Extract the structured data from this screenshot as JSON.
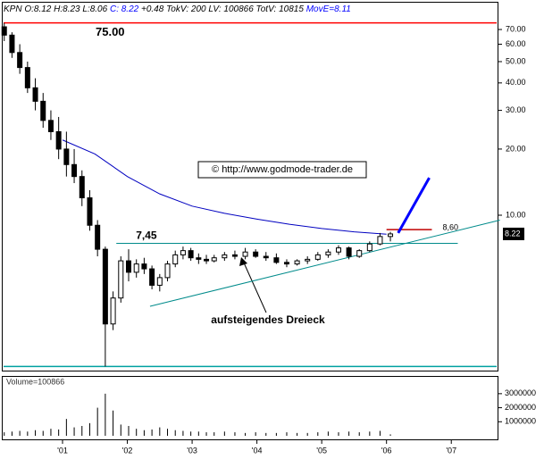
{
  "chart_data": {
    "type": "candlestick",
    "log_scale": true,
    "header": {
      "parts": [
        {
          "text": "KPN O:8.12 H:8.23 L:8.06 ",
          "color": "#000000"
        },
        {
          "text": "C: 8.22",
          "color": "#0000ff"
        },
        {
          "text": " +0.48 TokV: 200 LV: 100866 TotV: 10815 ",
          "color": "#000000"
        },
        {
          "text": "MovE=8.11",
          "color": "#0000ff"
        }
      ]
    },
    "x": [
      2000.1,
      2000.22,
      2000.34,
      2000.46,
      2000.58,
      2000.7,
      2000.82,
      2000.94,
      2001.06,
      2001.18,
      2001.3,
      2001.42,
      2001.54,
      2001.66,
      2001.78,
      2001.9,
      2002.02,
      2002.14,
      2002.26,
      2002.38,
      2002.5,
      2002.62,
      2002.74,
      2002.86,
      2002.98,
      2003.1,
      2003.22,
      2003.34,
      2003.5,
      2003.66,
      2003.82,
      2003.98,
      2004.14,
      2004.3,
      2004.46,
      2004.62,
      2004.78,
      2004.94,
      2005.1,
      2005.26,
      2005.42,
      2005.58,
      2005.74,
      2005.9,
      2006.06
    ],
    "open": [
      72,
      66,
      55,
      47,
      38,
      33,
      27,
      24,
      20,
      17,
      15,
      12,
      9,
      7,
      3.2,
      4.2,
      6.2,
      5.5,
      6.0,
      5.7,
      4.8,
      5.2,
      6.0,
      6.6,
      6.9,
      6.4,
      6.3,
      6.2,
      6.4,
      6.6,
      6.5,
      6.8,
      6.5,
      6.4,
      6.1,
      6.0,
      6.2,
      6.3,
      6.6,
      6.8,
      7.1,
      6.5,
      6.9,
      7.4,
      8.0
    ],
    "high": [
      75,
      68,
      60,
      50,
      42,
      36,
      30,
      28,
      24,
      20,
      16,
      13,
      9.5,
      7.2,
      4.5,
      6.5,
      7.0,
      6.3,
      6.4,
      5.9,
      5.4,
      6.2,
      6.9,
      7.2,
      7.1,
      6.7,
      6.6,
      6.6,
      6.8,
      6.9,
      7.1,
      7.0,
      6.8,
      6.7,
      6.3,
      6.3,
      6.5,
      6.8,
      7.0,
      7.3,
      7.2,
      7.0,
      7.6,
      8.3,
      8.4
    ],
    "low": [
      62,
      52,
      44,
      36,
      30,
      25,
      22,
      18,
      15,
      14,
      11,
      8.5,
      6.5,
      2.05,
      3.0,
      4.0,
      5.0,
      5.2,
      5.4,
      4.6,
      4.5,
      5.0,
      5.8,
      6.3,
      6.2,
      6.0,
      6.0,
      6.1,
      6.2,
      6.3,
      6.3,
      6.4,
      6.2,
      6.0,
      5.8,
      5.9,
      6.0,
      6.2,
      6.4,
      6.6,
      6.3,
      6.4,
      6.8,
      7.3,
      7.6
    ],
    "close": [
      66,
      55,
      47,
      38,
      33,
      27,
      24,
      20,
      17,
      15,
      12,
      9,
      7,
      3.2,
      4.2,
      6.2,
      5.5,
      6.0,
      5.7,
      4.8,
      5.2,
      6.0,
      6.6,
      6.9,
      6.4,
      6.3,
      6.2,
      6.4,
      6.6,
      6.5,
      6.8,
      6.5,
      6.4,
      6.1,
      6.0,
      6.2,
      6.3,
      6.6,
      6.8,
      7.1,
      6.5,
      6.9,
      7.4,
      8.0,
      8.22
    ],
    "volume": [
      250000,
      300000,
      350000,
      300000,
      400000,
      350000,
      500000,
      450000,
      1200000,
      600000,
      700000,
      900000,
      2000000,
      3000000,
      1800000,
      800000,
      700000,
      500000,
      400000,
      450000,
      600000,
      500000,
      400000,
      350000,
      300000,
      300000,
      250000,
      250000,
      300000,
      250000,
      200000,
      250000,
      200000,
      200000,
      250000,
      200000,
      200000,
      250000,
      300000,
      250000,
      300000,
      250000,
      300000,
      350000,
      100866
    ],
    "moving_average": {
      "color": "#0000c0",
      "x": [
        2001.0,
        2001.5,
        2002.0,
        2002.5,
        2003.0,
        2003.5,
        2004.0,
        2004.5,
        2005.0,
        2005.5,
        2006.0
      ],
      "values": [
        22,
        19,
        15,
        12.5,
        11,
        10.2,
        9.6,
        9.1,
        8.7,
        8.4,
        8.2
      ]
    },
    "xlim": [
      2000.09,
      2007.7
    ],
    "ylim": [
      2,
      91
    ],
    "xticks": [
      {
        "value": 2001,
        "label": "'01"
      },
      {
        "value": 2002,
        "label": "'02"
      },
      {
        "value": 2003,
        "label": "'03"
      },
      {
        "value": 2004,
        "label": "'04"
      },
      {
        "value": 2005,
        "label": "'05"
      },
      {
        "value": 2006,
        "label": "'06"
      },
      {
        "value": 2007,
        "label": "'07"
      }
    ],
    "yticks": [
      {
        "value": 10,
        "label": "10.00"
      },
      {
        "value": 20,
        "label": "20.00"
      },
      {
        "value": 30,
        "label": "30.00"
      },
      {
        "value": 40,
        "label": "40.00"
      },
      {
        "value": 50,
        "label": "50.00"
      },
      {
        "value": 60,
        "label": "60.00"
      },
      {
        "value": 70,
        "label": "70.00"
      }
    ],
    "volume_label": "Volume=100866",
    "volume_ylim": [
      0,
      3500000
    ],
    "volume_yticks": [
      1000000,
      2000000,
      3000000
    ],
    "levels": [
      {
        "value": 75,
        "label": "75.00",
        "color": "#ff0000",
        "x": [
          2000.09,
          2007.7
        ]
      },
      {
        "value": 7.45,
        "label": "7,45",
        "color": "#008b8b",
        "x": [
          2001.83,
          2007.1
        ]
      },
      {
        "value": 8.6,
        "label": "8,60",
        "color": "#c00000",
        "x": [
          2006.0,
          2006.7
        ]
      },
      {
        "value": 2.05,
        "color": "#00a0a0",
        "x": [
          2000.09,
          2007.7
        ]
      }
    ],
    "trendline": {
      "color": "#008b8b",
      "x": [
        2002.35,
        2007.75
      ],
      "values": [
        3.85,
        9.5
      ]
    },
    "forecast_arrow": {
      "color": "#0000ff",
      "x": [
        2006.18,
        2006.66
      ],
      "values": [
        8.3,
        14.8
      ]
    },
    "annotation": "aufsteigendes Dreieck",
    "watermark": "© http://www.godmode-trader.de"
  }
}
